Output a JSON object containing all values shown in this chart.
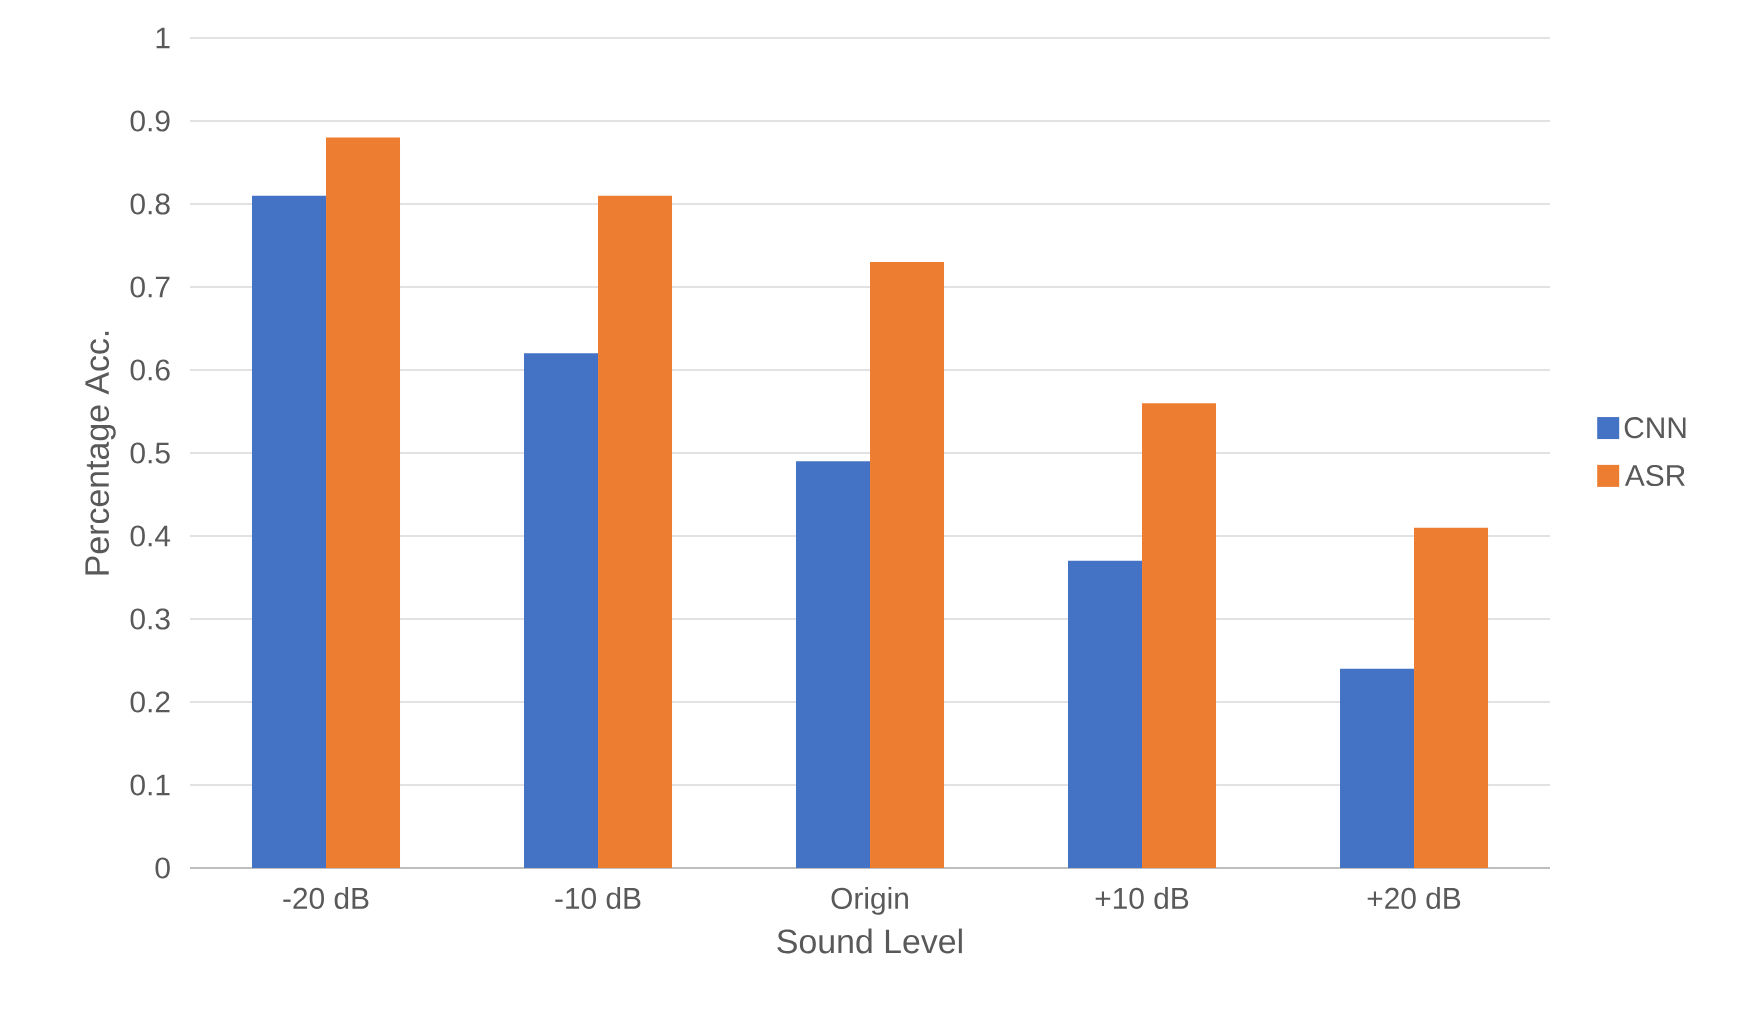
{
  "chart_data": {
    "type": "bar",
    "xlabel": "Sound Level",
    "ylabel": "Percentage Acc.",
    "categories": [
      "-20 dB",
      "-10 dB",
      "Origin",
      "+10 dB",
      "+20 dB"
    ],
    "series": [
      {
        "name": "CNN",
        "color": "#4472c4",
        "values": [
          0.81,
          0.62,
          0.49,
          0.37,
          0.24
        ]
      },
      {
        "name": "ASR",
        "color": "#ed7d31",
        "values": [
          0.88,
          0.81,
          0.73,
          0.56,
          0.41
        ]
      }
    ],
    "ylim": [
      0,
      1
    ],
    "yticks": [
      0,
      0.1,
      0.2,
      0.3,
      0.4,
      0.5,
      0.6,
      0.7,
      0.8,
      0.9,
      1
    ],
    "grid": "y",
    "legend": "right"
  }
}
